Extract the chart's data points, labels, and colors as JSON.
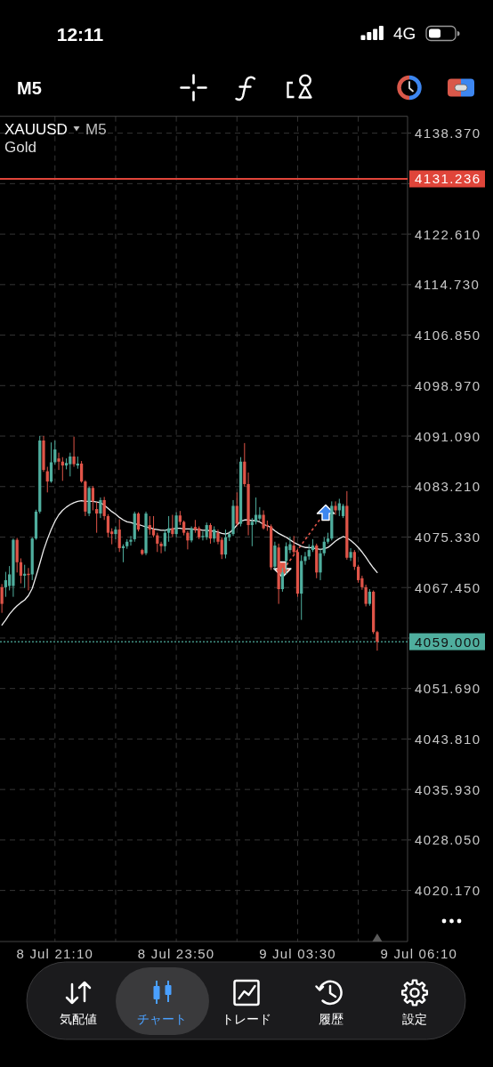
{
  "chart_data": {
    "type": "candlestick",
    "title": "XAUUSD",
    "subtitle": "Gold",
    "annotations": [
      "12:11",
      "4G",
      "M5",
      "M5",
      "気配値",
      "チャート",
      "トレード",
      "履歴",
      "設定"
    ],
    "categories": [
      null,
      null,
      null,
      null,
      null,
      null,
      null,
      null,
      null,
      null,
      null,
      null,
      null,
      null,
      "8 Jul 21:10",
      null,
      null,
      null,
      null,
      null,
      null,
      null,
      null,
      null,
      null,
      null,
      null,
      null,
      null,
      null,
      null,
      null,
      null,
      null,
      null,
      null,
      null,
      null,
      null,
      null,
      null,
      null,
      null,
      null,
      null,
      null,
      "8 Jul 23:50",
      null,
      null,
      null,
      null,
      null,
      null,
      null,
      null,
      null,
      null,
      null,
      null,
      null,
      null,
      null,
      null,
      null,
      null,
      null,
      null,
      null,
      null,
      null,
      null,
      null,
      null,
      null,
      null,
      null,
      null,
      null,
      "9 Jul 03:30",
      null,
      null,
      null,
      null,
      null,
      null,
      null,
      null,
      null,
      null,
      null,
      null,
      null,
      null,
      null,
      null,
      null,
      null,
      null,
      null,
      null,
      null,
      null,
      null,
      null,
      null,
      null,
      null,
      null,
      null,
      null,
      "9 Jul 06:10"
    ],
    "ohlc": [
      [
        4067.5,
        4068.0,
        4063.5,
        4064.9
      ],
      [
        4067.5,
        4069.9,
        4066.0,
        4068.6
      ],
      [
        4067.7,
        4070.8,
        4067.0,
        4069.5
      ],
      [
        4067.7,
        4075.1,
        4066.0,
        4074.9
      ],
      [
        4074.9,
        4075.2,
        4069.8,
        4071.4
      ],
      [
        4071.4,
        4072.0,
        4068.1,
        4069.3
      ],
      [
        4069.3,
        4071.0,
        4067.4,
        4069.6
      ],
      [
        4069.6,
        4070.5,
        4067.0,
        4069.4
      ],
      [
        4069.5,
        4075.3,
        4068.6,
        4075.1
      ],
      [
        4075.1,
        4079.6,
        4074.9,
        4079.3
      ],
      [
        4079.3,
        4091.1,
        4079.0,
        4090.4
      ],
      [
        4090.4,
        4091.1,
        4085.5,
        4085.8
      ],
      [
        4085.6,
        4086.3,
        4082.3,
        4084.0
      ],
      [
        4084.0,
        4090.1,
        4083.8,
        4087.0
      ],
      [
        4087.0,
        4090.4,
        4086.6,
        4089.0
      ],
      [
        4087.6,
        4088.5,
        4085.8,
        4087.1
      ],
      [
        4087.1,
        4087.8,
        4084.1,
        4086.5
      ],
      [
        4086.5,
        4087.6,
        4085.9,
        4086.9
      ],
      [
        4086.7,
        4088.5,
        4084.8,
        4087.9
      ],
      [
        4087.9,
        4091.0,
        4086.3,
        4086.7
      ],
      [
        4086.5,
        4087.9,
        4086.0,
        4086.8
      ],
      [
        4086.8,
        4087.2,
        4083.8,
        4084.0
      ],
      [
        4084.0,
        4084.2,
        4078.6,
        4079.3
      ],
      [
        4079.0,
        4083.2,
        4078.6,
        4083.0
      ],
      [
        4083.0,
        4083.3,
        4079.5,
        4080.9
      ],
      [
        4079.7,
        4080.8,
        4076.0,
        4079.0
      ],
      [
        4079.0,
        4081.5,
        4078.3,
        4081.1
      ],
      [
        4081.1,
        4081.6,
        4078.0,
        4078.6
      ],
      [
        4078.6,
        4078.9,
        4075.3,
        4076.0
      ],
      [
        4076.2,
        4076.7,
        4074.2,
        4075.8
      ],
      [
        4075.8,
        4077.0,
        4075.0,
        4076.5
      ],
      [
        4076.5,
        4078.1,
        4073.0,
        4073.6
      ],
      [
        4073.6,
        4074.2,
        4071.4,
        4073.9
      ],
      [
        4073.9,
        4075.0,
        4073.5,
        4074.6
      ],
      [
        4074.6,
        4075.5,
        4074.0,
        4074.9
      ],
      [
        4075.0,
        4079.3,
        4074.6,
        4079.0
      ],
      [
        4079.0,
        4079.2,
        4076.2,
        4076.5
      ],
      [
        4073.3,
        4073.5,
        4072.5,
        4072.7
      ],
      [
        4072.8,
        4079.3,
        4072.5,
        4079.0
      ],
      [
        4077.2,
        4078.6,
        4075.7,
        4076.5
      ],
      [
        4076.5,
        4078.6,
        4075.3,
        4075.6
      ],
      [
        4075.6,
        4076.0,
        4073.0,
        4074.3
      ],
      [
        4074.3,
        4074.6,
        4072.8,
        4073.9
      ],
      [
        4073.9,
        4076.5,
        4073.1,
        4076.0
      ],
      [
        4076.0,
        4078.6,
        4074.6,
        4076.7
      ],
      [
        4076.7,
        4078.8,
        4075.3,
        4075.8
      ],
      [
        4075.8,
        4079.2,
        4075.3,
        4078.7
      ],
      [
        4078.7,
        4079.4,
        4077.2,
        4077.7
      ],
      [
        4077.7,
        4077.9,
        4075.6,
        4076.0
      ],
      [
        4076.0,
        4076.3,
        4073.4,
        4074.8
      ],
      [
        4074.8,
        4077.0,
        4074.5,
        4076.7
      ],
      [
        4076.9,
        4078.0,
        4076.0,
        4076.5
      ],
      [
        4076.7,
        4077.0,
        4075.0,
        4075.3
      ],
      [
        4075.3,
        4076.2,
        4074.8,
        4075.5
      ],
      [
        4075.3,
        4077.6,
        4074.9,
        4077.2
      ],
      [
        4077.2,
        4077.5,
        4074.3,
        4075.1
      ],
      [
        4075.1,
        4077.0,
        4074.5,
        4076.5
      ],
      [
        4076.0,
        4076.5,
        4074.2,
        4074.6
      ],
      [
        4074.9,
        4075.3,
        4071.9,
        4072.6
      ],
      [
        4072.6,
        4076.5,
        4072.0,
        4075.3
      ],
      [
        4075.3,
        4076.2,
        4074.7,
        4075.8
      ],
      [
        4075.8,
        4081.1,
        4075.5,
        4080.2
      ],
      [
        4080.2,
        4082.3,
        4077.0,
        4077.4
      ],
      [
        4077.4,
        4087.8,
        4077.0,
        4087.1
      ],
      [
        4087.1,
        4090.0,
        4083.2,
        4083.6
      ],
      [
        4083.6,
        4085.4,
        4075.6,
        4077.2
      ],
      [
        4077.2,
        4078.3,
        4073.9,
        4077.7
      ],
      [
        4077.7,
        4081.5,
        4077.3,
        4078.8
      ],
      [
        4078.2,
        4080.0,
        4077.9,
        4078.8
      ],
      [
        4078.8,
        4079.5,
        4076.5,
        4076.7
      ],
      [
        4077.2,
        4077.9,
        4076.3,
        4077.0
      ],
      [
        4077.0,
        4077.3,
        4070.2,
        4070.6
      ],
      [
        4070.7,
        4074.6,
        4070.3,
        4074.0
      ],
      [
        4073.7,
        4074.3,
        4064.9,
        4067.2
      ],
      [
        4067.2,
        4070.5,
        4066.8,
        4069.8
      ],
      [
        4071.6,
        4074.5,
        4069.5,
        4073.9
      ],
      [
        4073.3,
        4075.4,
        4072.8,
        4074.2
      ],
      [
        4074.0,
        4075.5,
        4072.6,
        4073.0
      ],
      [
        4073.0,
        4073.5,
        4066.0,
        4066.5
      ],
      [
        4066.5,
        4072.5,
        4062.4,
        4071.6
      ],
      [
        4071.6,
        4073.0,
        4071.0,
        4072.3
      ],
      [
        4072.3,
        4074.2,
        4071.8,
        4073.3
      ],
      [
        4073.3,
        4075.0,
        4073.0,
        4074.0
      ],
      [
        4074.0,
        4074.3,
        4068.9,
        4069.8
      ],
      [
        4069.8,
        4073.5,
        4068.6,
        4072.8
      ],
      [
        4072.8,
        4075.3,
        4072.4,
        4074.6
      ],
      [
        4074.6,
        4076.0,
        4074.3,
        4075.1
      ],
      [
        4075.1,
        4080.9,
        4074.8,
        4080.2
      ],
      [
        4080.2,
        4080.9,
        4078.8,
        4079.5
      ],
      [
        4079.5,
        4081.3,
        4078.6,
        4080.6
      ],
      [
        4078.6,
        4080.5,
        4078.3,
        4080.2
      ],
      [
        4080.2,
        4082.5,
        4071.8,
        4072.1
      ],
      [
        4072.1,
        4073.6,
        4071.6,
        4073.0
      ],
      [
        4073.0,
        4073.3,
        4070.2,
        4070.7
      ],
      [
        4070.7,
        4071.0,
        4068.2,
        4068.6
      ],
      [
        4068.9,
        4069.3,
        4067.1,
        4067.5
      ],
      [
        4067.5,
        4067.9,
        4064.5,
        4064.9
      ],
      [
        4064.9,
        4067.2,
        4064.6,
        4066.8
      ],
      [
        4066.8,
        4067.0,
        4060.2,
        4060.5
      ],
      [
        4060.5,
        4060.7,
        4057.6,
        4059.0
      ],
      null,
      null,
      null,
      null,
      null,
      null,
      null,
      null,
      null,
      null,
      null
    ],
    "colors": [
      "#e05448",
      "#4fae9e",
      "#4fae9e",
      "#4fae9e",
      "#e05448",
      "#e05448",
      "#4fae9e",
      "#e05448",
      "#4fae9e",
      "#4fae9e",
      "#4fae9e",
      "#e05448",
      "#e05448",
      "#4fae9e",
      "#4fae9e",
      "#e05448",
      "#e05448",
      "#4fae9e",
      "#4fae9e",
      "#e05448",
      "#4fae9e",
      "#e05448",
      "#e05448",
      "#4fae9e",
      "#e05448",
      "#e05448",
      "#4fae9e",
      "#e05448",
      "#e05448",
      "#e05448",
      "#4fae9e",
      "#e05448",
      "#4fae9e",
      "#4fae9e",
      "#4fae9e",
      "#4fae9e",
      "#e05448",
      "#e05448",
      "#4fae9e",
      "#e05448",
      "#e05448",
      "#e05448",
      "#e05448",
      "#4fae9e",
      "#4fae9e",
      "#e05448",
      "#4fae9e",
      "#e05448",
      "#e05448",
      "#e05448",
      "#4fae9e",
      "#e05448",
      "#e05448",
      "#4fae9e",
      "#4fae9e",
      "#e05448",
      "#4fae9e",
      "#e05448",
      "#e05448",
      "#4fae9e",
      "#4fae9e",
      "#4fae9e",
      "#e05448",
      "#4fae9e",
      "#e05448",
      "#e05448",
      "#4fae9e",
      "#4fae9e",
      "#4fae9e",
      "#e05448",
      "#e05448",
      "#e05448",
      "#4fae9e",
      "#e05448",
      "#4fae9e",
      "#4fae9e",
      "#4fae9e",
      "#e05448",
      "#e05448",
      "#4fae9e",
      "#4fae9e",
      "#4fae9e",
      "#4fae9e",
      "#e05448",
      "#4fae9e",
      "#4fae9e",
      "#4fae9e",
      "#4fae9e",
      "#e05448",
      "#4fae9e",
      "#4fae9e",
      "#e05448",
      "#4fae9e",
      "#e05448",
      "#e05448",
      "#e05448",
      "#e05448",
      "#4fae9e",
      "#e05448",
      "#e05448",
      null,
      null,
      null,
      null,
      null,
      null,
      null,
      null,
      null,
      null,
      null
    ],
    "series": [
      {
        "type": "line",
        "color": "#eeeeee",
        "values": [
          4061.6,
          4062.4,
          4063.3,
          4064.0,
          4064.6,
          4065.1,
          4065.5,
          4066.2,
          4067.3,
          4069.2,
          4071.2,
          4073.3,
          4075.0,
          4076.5,
          4077.8,
          4078.8,
          4079.5,
          4080.0,
          4080.4,
          4080.7,
          4080.9,
          4081.0,
          4080.9,
          4080.9,
          4080.9,
          4080.8,
          4080.7,
          4080.3,
          4079.8,
          4079.3,
          4078.9,
          4078.4,
          4078.0,
          4077.7,
          4077.6,
          4077.4,
          4077.3,
          4077.1,
          4076.9,
          4076.8,
          4076.6,
          4076.5,
          4076.4,
          4076.4,
          4076.5,
          4076.6,
          4076.7,
          4076.7,
          4076.6,
          4076.6,
          4076.6,
          4076.5,
          4076.5,
          4076.4,
          4076.4,
          4076.3,
          4076.2,
          4076.1,
          4075.9,
          4075.8,
          4076.0,
          4076.5,
          4077.2,
          4077.8,
          4078.0,
          4078.0,
          4077.9,
          4077.9,
          4077.7,
          4077.3,
          4077.1,
          4076.8,
          4076.3,
          4075.9,
          4075.6,
          4075.3,
          4074.9,
          4074.5,
          4074.2,
          4073.9,
          4073.7,
          4073.7,
          4073.6,
          4073.5,
          4073.4,
          4073.5,
          4073.7,
          4074.2,
          4074.7,
          4075.1,
          4075.4,
          4075.2,
          4074.8,
          4074.3,
          4073.7,
          4073.0,
          4072.2,
          4071.3,
          4070.5,
          4069.8,
          null,
          null,
          null,
          null,
          null,
          null,
          null,
          null,
          null,
          null,
          null
        ]
      }
    ],
    "ylim": [
      4012.2,
      4141.0
    ],
    "yticks": [
      {
        "value": 4020.17,
        "label": "4020.170"
      },
      {
        "value": 4028.05,
        "label": "4028.050"
      },
      {
        "value": 4035.93,
        "label": "4035.930"
      },
      {
        "value": 4043.81,
        "label": "4043.810"
      },
      {
        "value": 4051.69,
        "label": "4051.690"
      },
      {
        "value": 4059.57,
        "label": null
      },
      {
        "value": 4067.45,
        "label": "4067.450"
      },
      {
        "value": 4075.33,
        "label": "4075.330"
      },
      {
        "value": 4083.21,
        "label": "4083.210"
      },
      {
        "value": 4091.09,
        "label": "4091.090"
      },
      {
        "value": 4098.97,
        "label": "4098.970"
      },
      {
        "value": 4106.85,
        "label": "4106.850"
      },
      {
        "value": 4114.73,
        "label": "4114.730"
      },
      {
        "value": 4122.61,
        "label": "4122.610"
      },
      {
        "value": 4130.49,
        "label": null
      },
      {
        "value": 4138.37,
        "label": "4138.370"
      }
    ],
    "grid": true,
    "ref_lines": [
      {
        "axis": "y",
        "value": 4131.236,
        "label": "4131.236",
        "color": "#e0453a",
        "line_style": "solid"
      },
      {
        "axis": "y",
        "value": 4059.0,
        "label": "4059.000",
        "color": "#4fae9e",
        "line_style": "dotted"
      }
    ]
  }
}
